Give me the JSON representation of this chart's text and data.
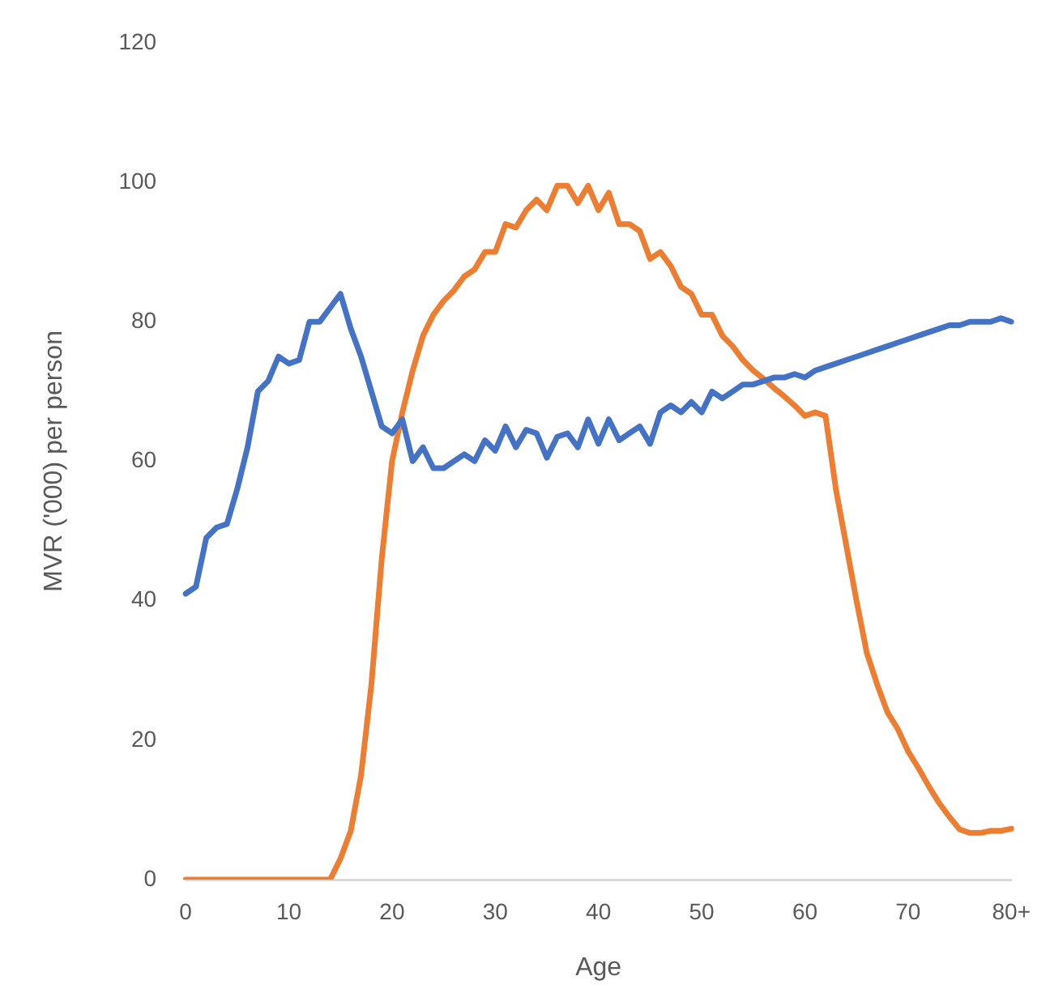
{
  "chart_data": {
    "type": "line",
    "xlabel": "Age",
    "ylabel": "MVR ('000) per person",
    "categories": [
      "0",
      null,
      null,
      null,
      null,
      null,
      null,
      null,
      null,
      null,
      "10",
      null,
      null,
      null,
      null,
      null,
      null,
      null,
      null,
      null,
      "20",
      null,
      null,
      null,
      null,
      null,
      null,
      null,
      null,
      null,
      "30",
      null,
      null,
      null,
      null,
      null,
      null,
      null,
      null,
      null,
      "40",
      null,
      null,
      null,
      null,
      null,
      null,
      null,
      null,
      null,
      "50",
      null,
      null,
      null,
      null,
      null,
      null,
      null,
      null,
      null,
      "60",
      null,
      null,
      null,
      null,
      null,
      null,
      null,
      null,
      null,
      "70",
      null,
      null,
      null,
      null,
      null,
      null,
      null,
      null,
      null,
      "80+"
    ],
    "series": [
      {
        "color": "#4472c4",
        "values": [
          41,
          42,
          49,
          50.5,
          51,
          56,
          62,
          70,
          71.5,
          75,
          74,
          74.5,
          80,
          80,
          82,
          84,
          79,
          75,
          70,
          65,
          64,
          66,
          60,
          62,
          59,
          59,
          60,
          61,
          60,
          63,
          61.5,
          65,
          62,
          64.5,
          64,
          60.5,
          63.5,
          64,
          62,
          66,
          62.5,
          66,
          63,
          64,
          65,
          62.5,
          67,
          68,
          67,
          68.5,
          67,
          70,
          69,
          70,
          71,
          71,
          71.5,
          72,
          72,
          72.5,
          72,
          73,
          73.5,
          74,
          74.5,
          75,
          75.5,
          76,
          76.5,
          77,
          77.5,
          78,
          78.5,
          79,
          79.5,
          79.5,
          80,
          80,
          80,
          80.5,
          80
        ]
      },
      {
        "color": "#ed7d31",
        "values": [
          0,
          0,
          0,
          0,
          0,
          0,
          0,
          0,
          0,
          0,
          0,
          0,
          0,
          0,
          0,
          3,
          7,
          15,
          28,
          46,
          60,
          67,
          73,
          78,
          81,
          83,
          84.5,
          86.5,
          87.5,
          90,
          90,
          94,
          93.5,
          96,
          97.5,
          96,
          99.5,
          99.5,
          97,
          99.5,
          96,
          98.5,
          94,
          94,
          93,
          89,
          90,
          88,
          85,
          84,
          81,
          81,
          78,
          76.5,
          74.5,
          73,
          71.8,
          70.5,
          69.3,
          68,
          66.5,
          67,
          66.5,
          56,
          48,
          40,
          32.5,
          28,
          24,
          21.6,
          18.4,
          16,
          13.4,
          11,
          9,
          7.2,
          6.7,
          6.7,
          7,
          7,
          7.3
        ]
      }
    ],
    "ylim": [
      0,
      120
    ],
    "yticks": [
      0,
      20,
      40,
      60,
      80,
      100,
      120
    ],
    "grid": false,
    "legend": false,
    "marker": "none",
    "line_style": "solid"
  }
}
